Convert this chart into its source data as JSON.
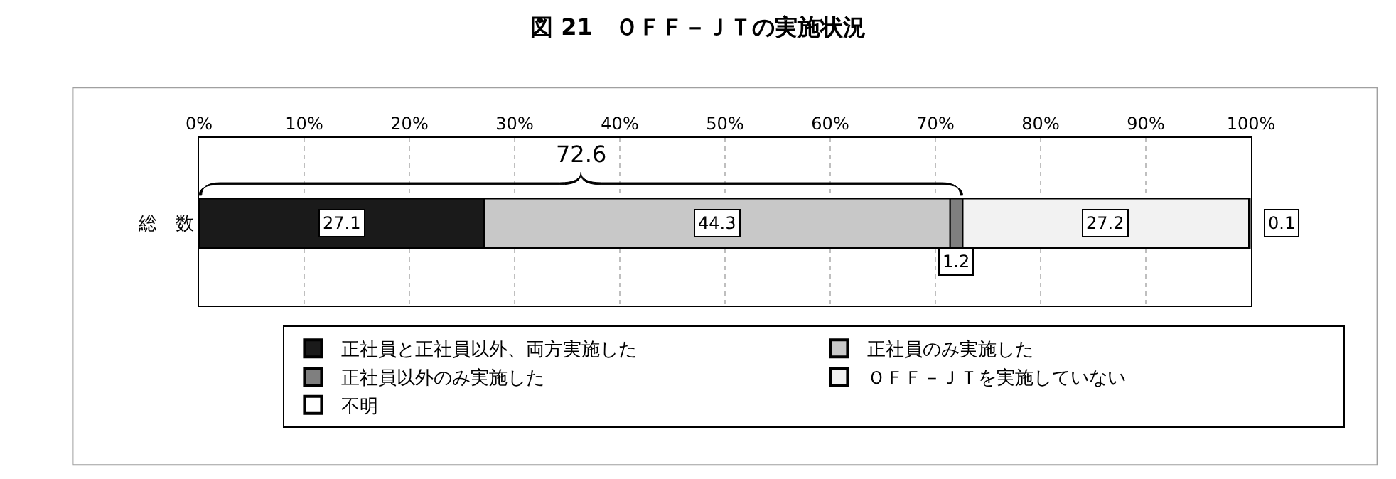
{
  "chart_data": {
    "type": "bar",
    "orientation": "horizontal",
    "stacked": true,
    "title": "図 21　ＯＦＦ－ＪＴの実施状況",
    "categories": [
      "総　数"
    ],
    "series": [
      {
        "name": "正社員と正社員以外、両方実施した",
        "color": "#1a1a1a",
        "values": [
          27.1
        ]
      },
      {
        "name": "正社員のみ実施した",
        "color": "#c8c8c8",
        "values": [
          44.3
        ]
      },
      {
        "name": "正社員以外のみ実施した",
        "color": "#7f7f7f",
        "values": [
          1.2
        ]
      },
      {
        "name": "ＯＦＦ－ＪＴを実施していない",
        "color": "#f2f2f2",
        "values": [
          27.2
        ]
      },
      {
        "name": "不明",
        "color": "#ffffff",
        "values": [
          0.1
        ]
      }
    ],
    "data_labels": true,
    "annotations": [
      "72.6"
    ],
    "xlim": [
      0,
      100
    ],
    "xticks": [
      {
        "value": 0,
        "label": "0%"
      },
      {
        "value": 10,
        "label": "10%"
      },
      {
        "value": 20,
        "label": "20%"
      },
      {
        "value": 30,
        "label": "30%"
      },
      {
        "value": 40,
        "label": "40%"
      },
      {
        "value": 50,
        "label": "50%"
      },
      {
        "value": 60,
        "label": "60%"
      },
      {
        "value": 70,
        "label": "70%"
      },
      {
        "value": 80,
        "label": "80%"
      },
      {
        "value": 90,
        "label": "90%"
      },
      {
        "value": 100,
        "label": "100%"
      }
    ],
    "grid": "x",
    "legend": "bottom"
  }
}
